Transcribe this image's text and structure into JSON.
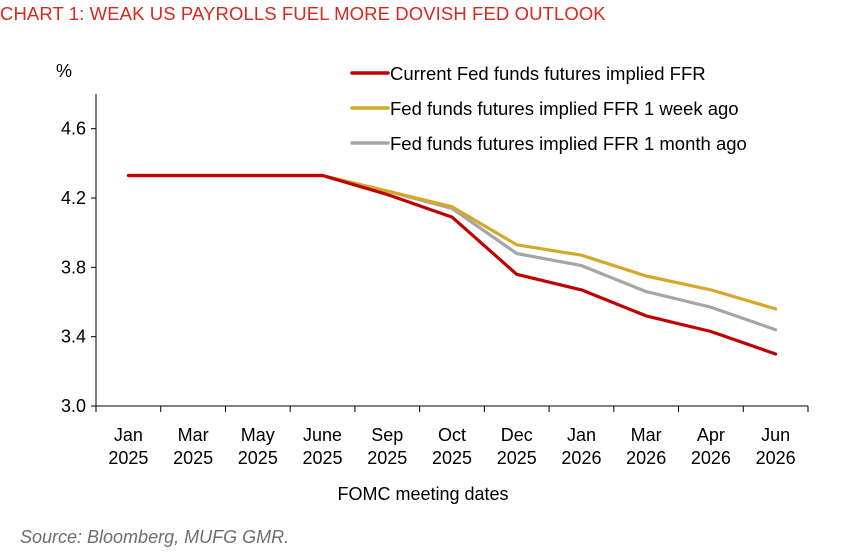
{
  "title": "CHART 1: WEAK US PAYROLLS FUEL MORE DOVISH FED OUTLOOK",
  "source": "Source: Bloomberg, MUFG GMR.",
  "colors": {
    "title": "#d9281e",
    "current": "#c00000",
    "week": "#d4a82a",
    "month": "#a6a6a6"
  },
  "chart_data": {
    "type": "line",
    "title": "CHART 1: WEAK US PAYROLLS FUEL MORE DOVISH FED OUTLOOK",
    "xlabel": "FOMC meeting dates",
    "ylabel": "%",
    "ylim": [
      3.0,
      4.8
    ],
    "yticks": [
      "3.0",
      "3.4",
      "3.8",
      "4.2",
      "4.6"
    ],
    "grid": false,
    "legend": "top-right",
    "categories": [
      [
        "Jan",
        "2025"
      ],
      [
        "Mar",
        "2025"
      ],
      [
        "May",
        "2025"
      ],
      [
        "June",
        "2025"
      ],
      [
        "Sep",
        "2025"
      ],
      [
        "Oct",
        "2025"
      ],
      [
        "Dec",
        "2025"
      ],
      [
        "Jan",
        "2026"
      ],
      [
        "Mar",
        "2026"
      ],
      [
        "Apr",
        "2026"
      ],
      [
        "Jun",
        "2026"
      ]
    ],
    "series": [
      {
        "name": "Current Fed funds futures implied FFR",
        "color": "#c00000",
        "values": [
          4.33,
          4.33,
          4.33,
          4.33,
          4.22,
          4.09,
          3.76,
          3.67,
          3.52,
          3.43,
          3.3
        ]
      },
      {
        "name": "Fed funds futures implied FFR 1 week ago",
        "color": "#d4a82a",
        "values": [
          4.33,
          4.33,
          4.33,
          4.33,
          4.24,
          4.15,
          3.93,
          3.87,
          3.75,
          3.67,
          3.56
        ]
      },
      {
        "name": "Fed funds futures implied FFR 1 month ago",
        "color": "#a6a6a6",
        "values": [
          4.33,
          4.33,
          4.33,
          4.33,
          4.24,
          4.14,
          3.88,
          3.81,
          3.66,
          3.57,
          3.44
        ]
      }
    ]
  }
}
